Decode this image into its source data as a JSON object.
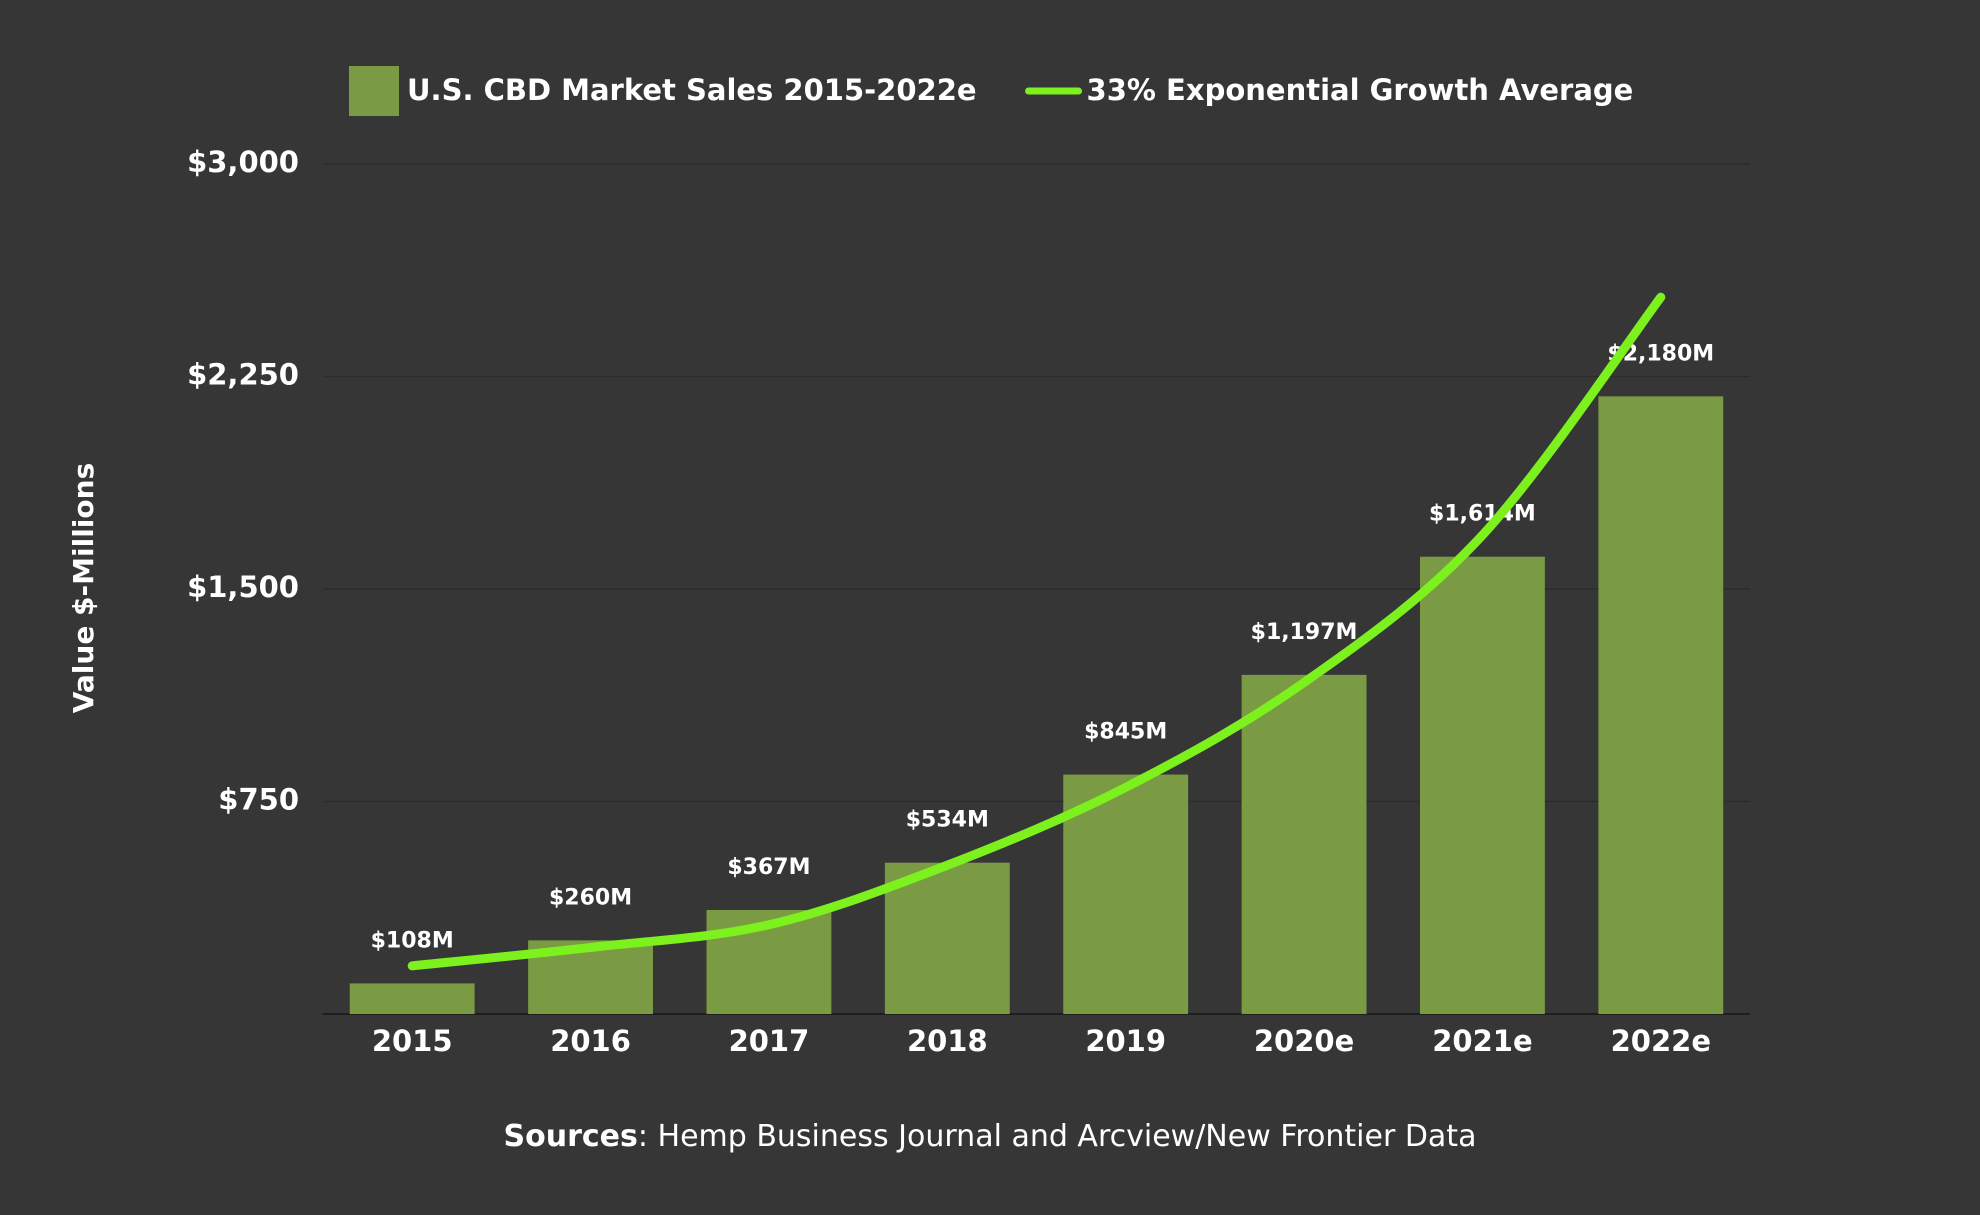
{
  "chart_data": {
    "type": "bar",
    "y_label": "Value $-Millions",
    "source_label": "Sources",
    "source_text": ": Hemp Business Journal and Arcview/New Frontier Data",
    "categories": [
      "2015",
      "2016",
      "2017",
      "2018",
      "2019",
      "2020e",
      "2021e",
      "2022e"
    ],
    "series": [
      {
        "name": "U.S. CBD Market Sales 2015-2022e",
        "type": "bar",
        "color": "#7a9a43",
        "values": [
          108,
          260,
          367,
          534,
          845,
          1197,
          1614,
          2180
        ],
        "value_labels": [
          "$108M",
          "$260M",
          "$367M",
          "$534M",
          "$845M",
          "$1,197M",
          "$1,614M",
          "$2,180M"
        ]
      },
      {
        "name": "33% Exponential Growth Average",
        "type": "line",
        "color": "#7cf11e",
        "values": [
          170,
          235,
          315,
          525,
          800,
          1170,
          1690,
          2530
        ]
      }
    ],
    "ylim": [
      0,
      3000
    ],
    "yticks": [
      {
        "value": 750,
        "label": "$750"
      },
      {
        "value": 1500,
        "label": "$1,500"
      },
      {
        "value": 2250,
        "label": "$2,250"
      },
      {
        "value": 3000,
        "label": "$3,000"
      }
    ],
    "grid": true
  }
}
